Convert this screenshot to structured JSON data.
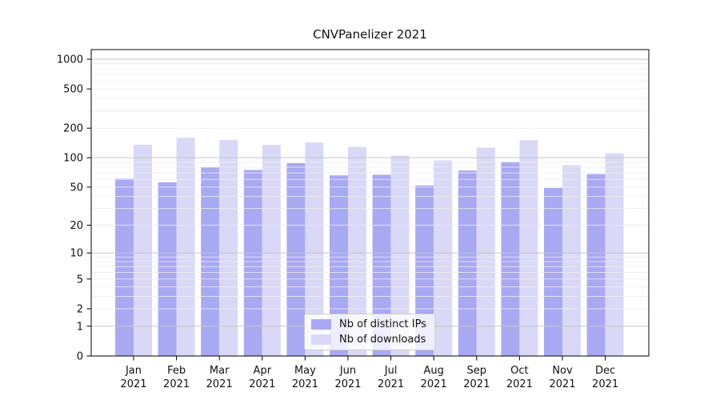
{
  "chart_data": {
    "type": "bar",
    "title": "CNVPanelizer 2021",
    "year": "2021",
    "categories": [
      "Jan",
      "Feb",
      "Mar",
      "Apr",
      "May",
      "Jun",
      "Jul",
      "Aug",
      "Sep",
      "Oct",
      "Nov",
      "Dec"
    ],
    "series": [
      {
        "name": "Nb of distinct IPs",
        "color": "#a9a9f3",
        "values": [
          61,
          56,
          80,
          75,
          88,
          66,
          67,
          52,
          74,
          91,
          49,
          68
        ]
      },
      {
        "name": "Nb of downloads",
        "color": "#d9d9f7",
        "values": [
          136,
          160,
          152,
          135,
          143,
          129,
          105,
          94,
          127,
          151,
          84,
          111
        ]
      }
    ],
    "y_ticks": [
      0,
      1,
      2,
      5,
      10,
      20,
      50,
      100,
      200,
      500,
      1000
    ],
    "y_scale": "log10(1+v)",
    "ylim": [
      0,
      1250
    ],
    "xlabel": "",
    "ylabel": "",
    "grid": "on",
    "legend_position": "lower-center"
  },
  "colors": {
    "grid_minor": "#ededed",
    "grid_major": "#c6c6c6",
    "axis": "#000000",
    "text": "#111111",
    "legend_border": "#cccccc"
  }
}
